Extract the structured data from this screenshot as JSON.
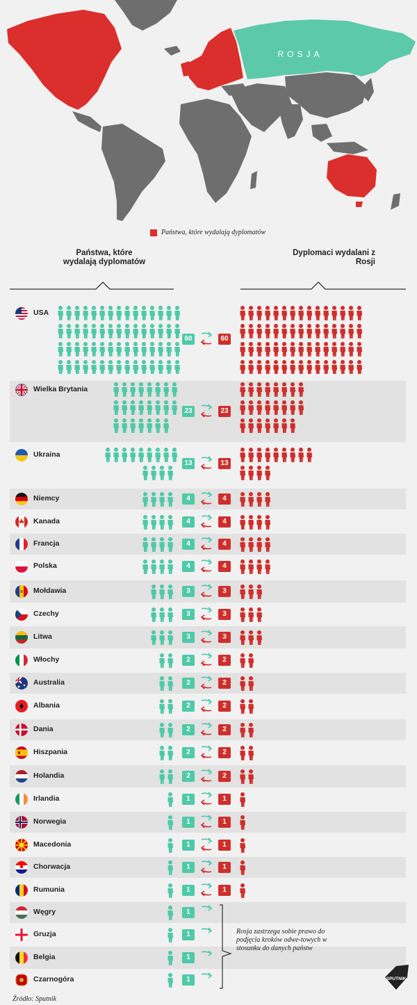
{
  "map": {
    "russia_label": "ROSJA",
    "legend_label": "Państwa, które wydalają dyplomatów",
    "colors": {
      "expelling": "#da2f2c",
      "russia": "#5ccaaa",
      "neutral": "#6b6b6b",
      "ocean": "#f1f1f1"
    }
  },
  "headers": {
    "left": "Państwa, które wydalają dyplomatów",
    "right": "Dyplomaci wydalani z Rosji"
  },
  "chart_data": {
    "type": "pictogram",
    "title": "",
    "series": [
      {
        "name": "Państwa, które wydalają dyplomatów",
        "color": "#4fc9a8"
      },
      {
        "name": "Dyplomaci wydalani z Rosji",
        "color": "#cf2f2c"
      }
    ],
    "rows": [
      {
        "country": "USA",
        "flag": "usa-flag-icon",
        "expelled": 60,
        "russia_response": 60
      },
      {
        "country": "Wielka Brytania",
        "flag": "uk-flag-icon",
        "expelled": 23,
        "russia_response": 23
      },
      {
        "country": "Ukraina",
        "flag": "ukraine-flag-icon",
        "expelled": 13,
        "russia_response": 13
      },
      {
        "country": "Niemcy",
        "flag": "germany-flag-icon",
        "expelled": 4,
        "russia_response": 4
      },
      {
        "country": "Kanada",
        "flag": "canada-flag-icon",
        "expelled": 4,
        "russia_response": 4
      },
      {
        "country": "Francja",
        "flag": "france-flag-icon",
        "expelled": 4,
        "russia_response": 4
      },
      {
        "country": "Polska",
        "flag": "poland-flag-icon",
        "expelled": 4,
        "russia_response": 4
      },
      {
        "country": "Mołdawia",
        "flag": "moldova-flag-icon",
        "expelled": 3,
        "russia_response": 3
      },
      {
        "country": "Czechy",
        "flag": "czech-flag-icon",
        "expelled": 3,
        "russia_response": 3
      },
      {
        "country": "Litwa",
        "flag": "lithuania-flag-icon",
        "expelled": 3,
        "russia_response": 3
      },
      {
        "country": "Włochy",
        "flag": "italy-flag-icon",
        "expelled": 2,
        "russia_response": 2
      },
      {
        "country": "Australia",
        "flag": "australia-flag-icon",
        "expelled": 2,
        "russia_response": 2
      },
      {
        "country": "Albania",
        "flag": "albania-flag-icon",
        "expelled": 2,
        "russia_response": 2
      },
      {
        "country": "Dania",
        "flag": "denmark-flag-icon",
        "expelled": 2,
        "russia_response": 2
      },
      {
        "country": "Hiszpania",
        "flag": "spain-flag-icon",
        "expelled": 2,
        "russia_response": 2
      },
      {
        "country": "Holandia",
        "flag": "netherlands-flag-icon",
        "expelled": 2,
        "russia_response": 2
      },
      {
        "country": "Irlandia",
        "flag": "ireland-flag-icon",
        "expelled": 1,
        "russia_response": 1
      },
      {
        "country": "Norwegia",
        "flag": "norway-flag-icon",
        "expelled": 1,
        "russia_response": 1
      },
      {
        "country": "Macedonia",
        "flag": "macedonia-flag-icon",
        "expelled": 1,
        "russia_response": 1
      },
      {
        "country": "Chorwacja",
        "flag": "croatia-flag-icon",
        "expelled": 1,
        "russia_response": 1
      },
      {
        "country": "Rumunia",
        "flag": "romania-flag-icon",
        "expelled": 1,
        "russia_response": 1
      },
      {
        "country": "Węgry",
        "flag": "hungary-flag-icon",
        "expelled": 1,
        "russia_response": null
      },
      {
        "country": "Gruzja",
        "flag": "georgia-flag-icon",
        "expelled": 1,
        "russia_response": null
      },
      {
        "country": "Belgia",
        "flag": "belgium-flag-icon",
        "expelled": 1,
        "russia_response": null
      },
      {
        "country": "Czarnogóra",
        "flag": "montenegro-flag-icon",
        "expelled": 1,
        "russia_response": null
      }
    ]
  },
  "note": "Rosja zastrzega sobie prawo do podjęcia kroków odwe-towych w stosunku do danych państw",
  "source": "Źródło: Sputnik",
  "logo_text": "SPUTNIK"
}
